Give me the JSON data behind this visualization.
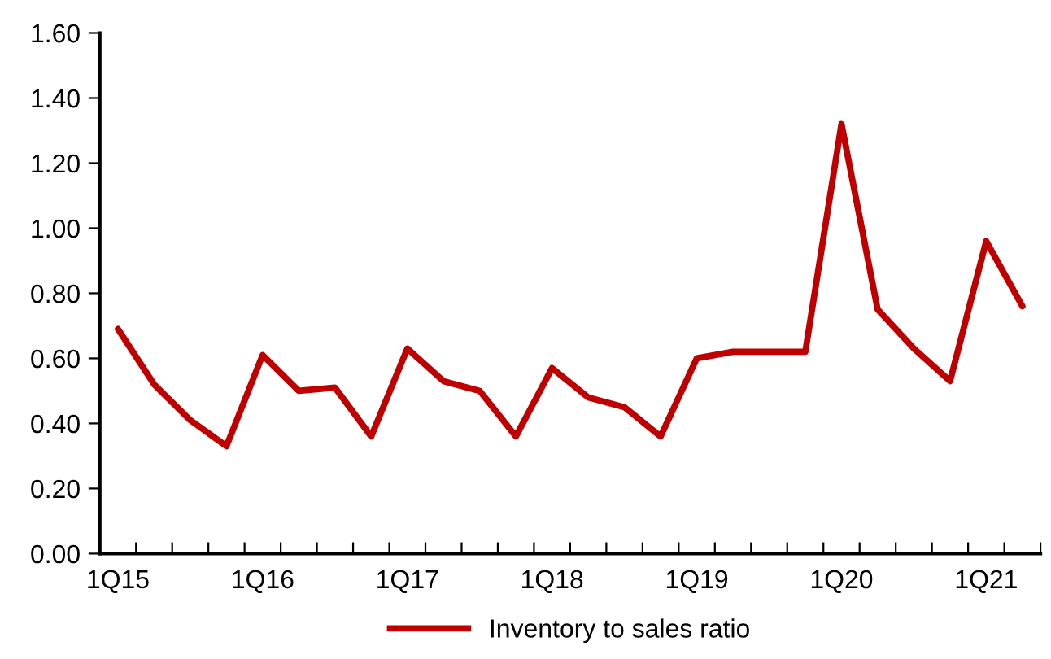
{
  "chart_data": {
    "type": "line",
    "categories": [
      "1Q15",
      null,
      null,
      null,
      "1Q16",
      null,
      null,
      null,
      "1Q17",
      null,
      null,
      null,
      "1Q18",
      null,
      null,
      null,
      "1Q19",
      null,
      null,
      null,
      "1Q20",
      null,
      null,
      null,
      "1Q21",
      null
    ],
    "series": [
      {
        "name": "Inventory to sales ratio",
        "color": "#c00000",
        "values": [
          0.69,
          0.52,
          0.41,
          0.33,
          0.61,
          0.5,
          0.51,
          0.36,
          0.63,
          0.53,
          0.5,
          0.36,
          0.57,
          0.48,
          0.45,
          0.36,
          0.6,
          0.62,
          0.62,
          0.62,
          1.32,
          0.75,
          0.63,
          0.53,
          0.96,
          0.76
        ]
      }
    ],
    "ylim": [
      0,
      1.6
    ],
    "yticks": [
      {
        "value": 0,
        "label": "0.00"
      },
      {
        "value": 0.2,
        "label": "0.20"
      },
      {
        "value": 0.4,
        "label": "0.40"
      },
      {
        "value": 0.6,
        "label": "0.60"
      },
      {
        "value": 0.8,
        "label": "0.80"
      },
      {
        "value": 1.0,
        "label": "1.00"
      },
      {
        "value": 1.2,
        "label": "1.20"
      },
      {
        "value": 1.4,
        "label": "1.40"
      },
      {
        "value": 1.6,
        "label": "1.60"
      }
    ],
    "grid": false,
    "legend": "bottom",
    "marker": "none",
    "line_style": "solid"
  }
}
